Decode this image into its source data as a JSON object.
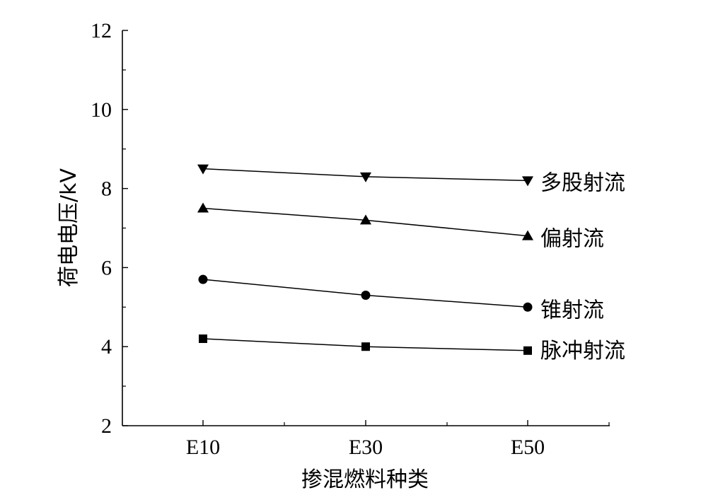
{
  "chart_data": {
    "type": "line",
    "title": "",
    "xlabel": "掺混燃料种类",
    "ylabel": "荷电电压/kV",
    "categories": [
      "E10",
      "E30",
      "E50"
    ],
    "ylim": [
      2,
      12
    ],
    "yticks": [
      2,
      4,
      6,
      8,
      10,
      12
    ],
    "grid": false,
    "legend": "inline-right",
    "series": [
      {
        "name": "多股射流",
        "marker": "triangle-down",
        "values": [
          8.5,
          8.3,
          8.2
        ]
      },
      {
        "name": "偏射流",
        "marker": "triangle-up",
        "values": [
          7.5,
          7.2,
          6.8
        ]
      },
      {
        "name": "锥射流",
        "marker": "circle",
        "values": [
          5.7,
          5.3,
          5.0
        ]
      },
      {
        "name": "脉冲射流",
        "marker": "square",
        "values": [
          4.2,
          4.0,
          3.9
        ]
      }
    ],
    "colors": {
      "line": "#000000",
      "marker": "#000000",
      "axis": "#000000"
    }
  }
}
